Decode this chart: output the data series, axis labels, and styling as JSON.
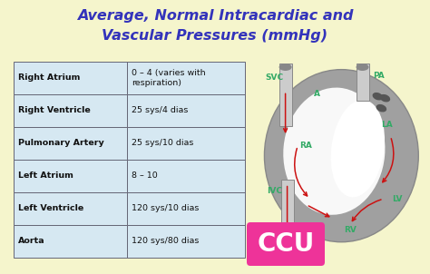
{
  "title_line1": "Average, Normal Intracardiac and",
  "title_line2": "Vascular Pressures (mmHg)",
  "title_color": "#3333bb",
  "bg_color": "#f5f5cc",
  "table_rows": [
    [
      "Right Atrium",
      "0 – 4 (varies with\nrespiration)"
    ],
    [
      "Right Ventricle",
      "25 sys/4 dias"
    ],
    [
      "Pulmonary Artery",
      "25 sys/10 dias"
    ],
    [
      "Left Atrium",
      "8 – 10"
    ],
    [
      "Left Ventricle",
      "120 sys/10 dias"
    ],
    [
      "Aorta",
      "120 sys/80 dias"
    ]
  ],
  "table_cell_bg": "#d6e8f2",
  "table_border_color": "#666677",
  "table_text_color": "#111111",
  "ccu_bg": "#ee3399",
  "ccu_text": "CCU",
  "ccu_text_color": "#ffffff",
  "heart_label_color": "#33aa66",
  "heart_bg_color": "#f0f0f0",
  "heart_outer_color": "#999999",
  "heart_inner_color": "#ffffff",
  "heart_arrow_color": "#cc1111",
  "svc_color": "#aaaaaa"
}
